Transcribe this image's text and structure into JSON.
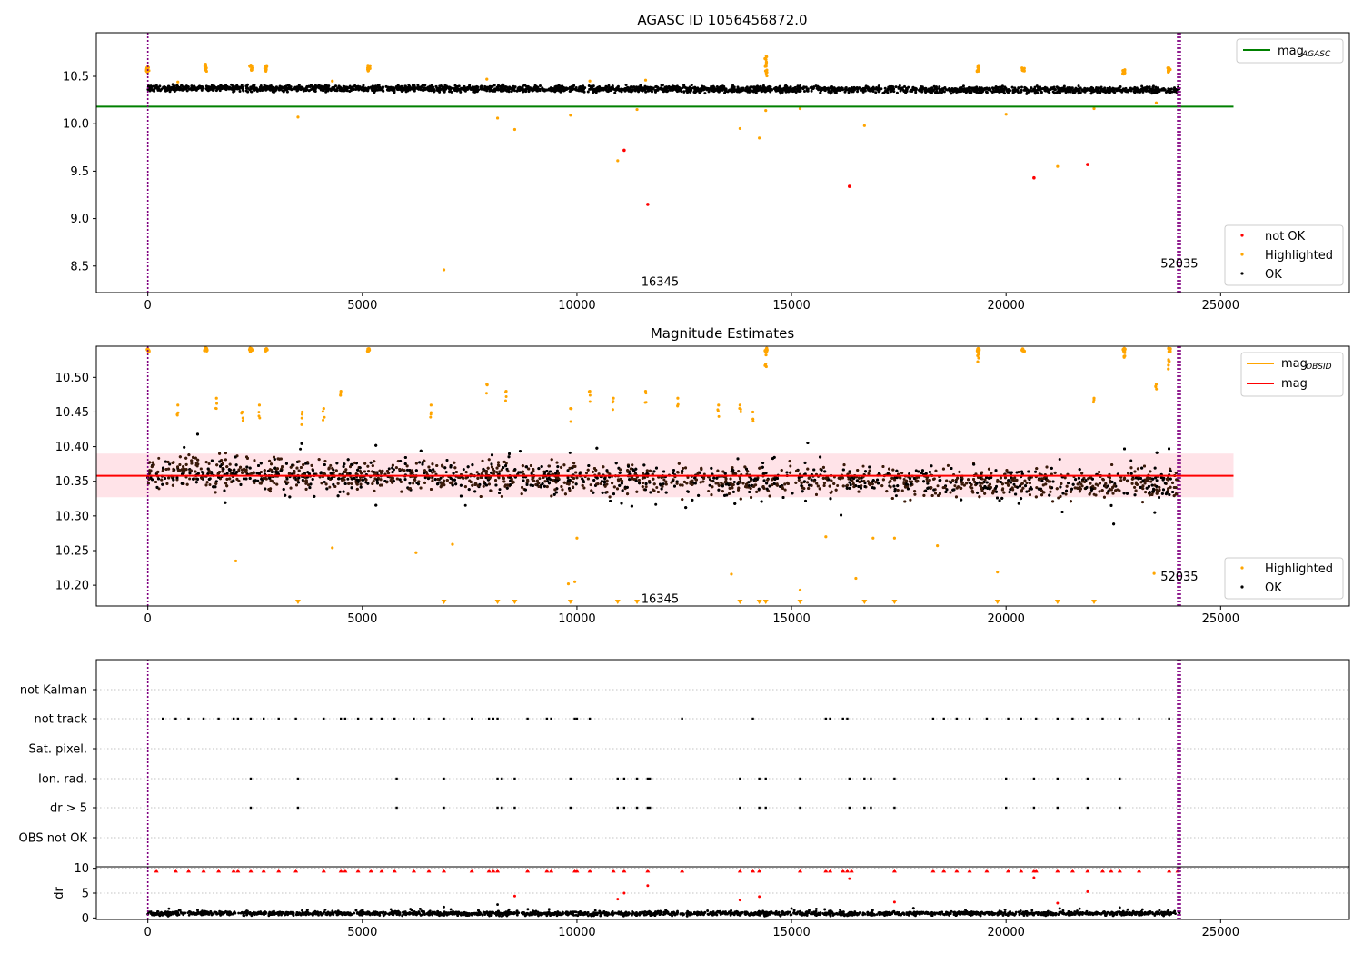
{
  "figure": {
    "colors": {
      "ok": "#000000",
      "highlighted": "#ffa500",
      "not_ok": "#ff0000",
      "mag_agasc_line": "#008000",
      "mag_line": "#ff0000",
      "mag_band": "#ffc0cb",
      "obsid_vline": "#800080"
    }
  },
  "chart_data": [
    {
      "type": "scatter",
      "title": "AGASC ID 1056456872.0",
      "xlim": [
        -1200,
        28000
      ],
      "ylim": [
        8.22,
        10.96
      ],
      "x_ticks": [
        0,
        5000,
        10000,
        15000,
        20000,
        25000
      ],
      "y_ticks": [
        8.5,
        9.0,
        9.5,
        10.0,
        10.5
      ],
      "x_tick_labels": [
        "0",
        "5000",
        "10000",
        "15000",
        "20000",
        "25000"
      ],
      "y_tick_labels": [
        "8.5",
        "9.0",
        "9.5",
        "10.0",
        "10.5"
      ],
      "legend_top": {
        "placement": "upper-right",
        "entries": [
          "mag_AGASC"
        ],
        "label_main": "mag",
        "label_sub": "AGASC"
      },
      "legend_bottom": {
        "placement": "lower-right",
        "entries": [
          "not OK",
          "Highlighted",
          "OK"
        ]
      },
      "hlines": [
        {
          "name": "mag_AGASC",
          "y": 10.18,
          "x_range": [
            -1200,
            25300
          ]
        }
      ],
      "obsid_lines": [
        0,
        24000,
        24060
      ],
      "obsid_annotations": [
        {
          "text": "16345",
          "x": 11500,
          "y": 8.33
        },
        {
          "text": "52035",
          "x": 23600,
          "y": 8.52
        }
      ],
      "ok_band": {
        "x_range": [
          0,
          24050
        ],
        "center": 10.355,
        "half_width": 0.05
      },
      "highlighted_clusters": [
        {
          "x": 0,
          "y_range": [
            10.54,
            10.6
          ]
        },
        {
          "x": 1350,
          "y_range": [
            10.55,
            10.64
          ]
        },
        {
          "x": 2400,
          "y_range": [
            10.55,
            10.62
          ]
        },
        {
          "x": 2750,
          "y_range": [
            10.55,
            10.62
          ]
        },
        {
          "x": 5150,
          "y_range": [
            10.55,
            10.62
          ]
        },
        {
          "x": 14400,
          "y_range": [
            10.5,
            10.73
          ]
        },
        {
          "x": 19350,
          "y_range": [
            10.55,
            10.62
          ]
        },
        {
          "x": 20400,
          "y_range": [
            10.55,
            10.6
          ]
        },
        {
          "x": 22750,
          "y_range": [
            10.52,
            10.58
          ]
        },
        {
          "x": 23800,
          "y_range": [
            10.54,
            10.59
          ]
        }
      ],
      "highlighted_points": [
        {
          "x": 3500,
          "y": 10.07
        },
        {
          "x": 6900,
          "y": 8.46
        },
        {
          "x": 8150,
          "y": 10.06
        },
        {
          "x": 8550,
          "y": 9.94
        },
        {
          "x": 9850,
          "y": 10.09
        },
        {
          "x": 10950,
          "y": 9.61
        },
        {
          "x": 11400,
          "y": 10.15
        },
        {
          "x": 13800,
          "y": 9.95
        },
        {
          "x": 14250,
          "y": 9.85
        },
        {
          "x": 14400,
          "y": 10.14
        },
        {
          "x": 15200,
          "y": 10.16
        },
        {
          "x": 16700,
          "y": 9.98
        },
        {
          "x": 20000,
          "y": 10.1
        },
        {
          "x": 21200,
          "y": 9.55
        },
        {
          "x": 22050,
          "y": 10.16
        },
        {
          "x": 23500,
          "y": 10.22
        },
        {
          "x": 700,
          "y": 10.44
        },
        {
          "x": 4300,
          "y": 10.45
        },
        {
          "x": 7900,
          "y": 10.47
        },
        {
          "x": 10300,
          "y": 10.45
        },
        {
          "x": 11600,
          "y": 10.46
        }
      ],
      "not_ok_points": [
        {
          "x": 11100,
          "y": 9.72
        },
        {
          "x": 11650,
          "y": 9.15
        },
        {
          "x": 16350,
          "y": 9.34
        },
        {
          "x": 20650,
          "y": 9.43
        },
        {
          "x": 21900,
          "y": 9.57
        }
      ]
    },
    {
      "type": "scatter",
      "title": "Magnitude Estimates",
      "xlim": [
        -1200,
        28000
      ],
      "ylim": [
        10.17,
        10.545
      ],
      "x_ticks": [
        0,
        5000,
        10000,
        15000,
        20000,
        25000
      ],
      "y_ticks": [
        10.2,
        10.25,
        10.3,
        10.35,
        10.4,
        10.45,
        10.5
      ],
      "x_tick_labels": [
        "0",
        "5000",
        "10000",
        "15000",
        "20000",
        "25000"
      ],
      "y_tick_labels": [
        "10.20",
        "10.25",
        "10.30",
        "10.35",
        "10.40",
        "10.45",
        "10.50"
      ],
      "legend_top": {
        "placement": "upper-right",
        "entries": [
          "mag_OBSID",
          "mag"
        ],
        "label_main": "mag",
        "label_sub": "OBSID",
        "label_second": "mag"
      },
      "legend_bottom": {
        "placement": "lower-right",
        "entries": [
          "Highlighted",
          "OK"
        ]
      },
      "mag_line": {
        "y": 10.358,
        "x_range": [
          -1200,
          25300
        ]
      },
      "mag_band": {
        "y_range": [
          10.327,
          10.39
        ],
        "x_range": [
          -1200,
          25300
        ]
      },
      "obsid_lines": [
        0,
        24000,
        24060
      ],
      "obsid_annotations": [
        {
          "text": "16345",
          "x": 11500,
          "y": 10.18
        },
        {
          "text": "52035",
          "x": 23600,
          "y": 10.212
        }
      ],
      "ok_scatter": {
        "x_range": [
          0,
          24050
        ],
        "center_start": 10.362,
        "center_end": 10.345,
        "spread": 0.03
      },
      "highlighted_top_clusters": [
        0,
        1350,
        2400,
        2750,
        5150,
        14400,
        19350,
        20400,
        22750,
        23800
      ],
      "highlighted_upper_points": [
        {
          "x": 700,
          "y": 10.46
        },
        {
          "x": 1600,
          "y": 10.47
        },
        {
          "x": 2200,
          "y": 10.45
        },
        {
          "x": 2600,
          "y": 10.46
        },
        {
          "x": 3600,
          "y": 10.45
        },
        {
          "x": 4500,
          "y": 10.48
        },
        {
          "x": 6600,
          "y": 10.46
        },
        {
          "x": 7900,
          "y": 10.49
        },
        {
          "x": 8350,
          "y": 10.48
        },
        {
          "x": 10300,
          "y": 10.48
        },
        {
          "x": 11600,
          "y": 10.48
        },
        {
          "x": 12350,
          "y": 10.47
        },
        {
          "x": 13300,
          "y": 10.46
        },
        {
          "x": 13800,
          "y": 10.46
        },
        {
          "x": 23500,
          "y": 10.49
        },
        {
          "x": 22050,
          "y": 10.47
        },
        {
          "x": 9850,
          "y": 10.455
        },
        {
          "x": 10850,
          "y": 10.47
        },
        {
          "x": 4100,
          "y": 10.455
        },
        {
          "x": 14100,
          "y": 10.45
        }
      ],
      "highlighted_lower_points": [
        {
          "x": 2050,
          "y": 10.235
        },
        {
          "x": 4300,
          "y": 10.254
        },
        {
          "x": 6250,
          "y": 10.247
        },
        {
          "x": 7100,
          "y": 10.259
        },
        {
          "x": 9800,
          "y": 10.202
        },
        {
          "x": 9950,
          "y": 10.205
        },
        {
          "x": 10000,
          "y": 10.268
        },
        {
          "x": 13600,
          "y": 10.216
        },
        {
          "x": 15200,
          "y": 10.193
        },
        {
          "x": 15800,
          "y": 10.27
        },
        {
          "x": 16500,
          "y": 10.21
        },
        {
          "x": 16900,
          "y": 10.268
        },
        {
          "x": 17400,
          "y": 10.268
        },
        {
          "x": 18400,
          "y": 10.257
        },
        {
          "x": 19800,
          "y": 10.219
        },
        {
          "x": 23450,
          "y": 10.217
        }
      ],
      "highlighted_offscale_low": [
        3500,
        6900,
        8150,
        8550,
        9850,
        10950,
        11400,
        13800,
        14250,
        14400,
        15200,
        16700,
        17400,
        19800,
        21200,
        22050
      ]
    },
    {
      "type": "scatter",
      "title": "",
      "xlim": [
        -1200,
        28000
      ],
      "categories": [
        "not Kalman",
        "not track",
        "Sat. pixel.",
        "Ion. rad.",
        "dr > 5",
        "OBS not OK"
      ],
      "flag_x": {
        "not Kalman": [],
        "not track": [
          350,
          650,
          950,
          1300,
          1650,
          2000,
          2100,
          2400,
          2700,
          3050,
          3450,
          4100,
          4500,
          4600,
          4900,
          5200,
          5450,
          5750,
          6200,
          6550,
          6900,
          7550,
          7950,
          8050,
          8150,
          8850,
          9300,
          9400,
          9950,
          10000,
          10300,
          12450,
          14100,
          15800,
          15900,
          16200,
          16300,
          18300,
          18550,
          18850,
          19150,
          19550,
          20050,
          20350,
          20700,
          21200,
          21550,
          21900,
          22250,
          22650,
          23100,
          23800
        ],
        "Sat. pixel.": [],
        "Ion. rad.": [
          2400,
          3500,
          5800,
          6900,
          8150,
          8250,
          8550,
          9850,
          10950,
          11100,
          11400,
          11650,
          11700,
          13800,
          14250,
          14400,
          15200,
          16350,
          16700,
          16850,
          17400,
          20000,
          20650,
          21200,
          21900,
          22650
        ],
        "dr > 5": [
          2400,
          3500,
          5800,
          6900,
          8150,
          8250,
          8550,
          9850,
          10950,
          11100,
          11400,
          11650,
          11700,
          13800,
          14250,
          14400,
          15200,
          16350,
          16700,
          16850,
          17400,
          20000,
          20650,
          21200,
          21900,
          22650
        ],
        "OBS not OK": []
      },
      "obsid_lines": [
        0,
        24000,
        24060
      ]
    },
    {
      "type": "scatter",
      "title": "",
      "ylabel": "dr",
      "xlim": [
        -1200,
        28000
      ],
      "ylim": [
        -0.3,
        10.3
      ],
      "x_ticks": [
        0,
        5000,
        10000,
        15000,
        20000,
        25000
      ],
      "y_ticks": [
        0,
        5,
        10
      ],
      "x_tick_labels": [
        "0",
        "5000",
        "10000",
        "15000",
        "20000",
        "25000"
      ],
      "y_tick_labels": [
        "0",
        "5",
        "10"
      ],
      "ok_band": {
        "x_range": [
          0,
          24050
        ],
        "center": 0.9,
        "spread": 0.6
      },
      "capped_x": [
        200,
        650,
        950,
        1300,
        1650,
        2000,
        2100,
        2400,
        2700,
        3050,
        3450,
        4100,
        4500,
        4600,
        4900,
        5200,
        5450,
        5750,
        6200,
        6550,
        6900,
        7550,
        7950,
        8050,
        8150,
        8850,
        9300,
        9400,
        9950,
        10000,
        10300,
        10850,
        11100,
        11650,
        12450,
        13800,
        14100,
        14250,
        15200,
        15800,
        15900,
        16200,
        16300,
        16400,
        17400,
        18300,
        18550,
        18850,
        19150,
        19550,
        20050,
        20350,
        20650,
        20700,
        21200,
        21550,
        21900,
        22250,
        22450,
        22650,
        23100,
        23800,
        24000
      ],
      "red_points": [
        {
          "x": 11100,
          "y": 5.0
        },
        {
          "x": 11650,
          "y": 6.5
        },
        {
          "x": 16350,
          "y": 7.9
        },
        {
          "x": 20650,
          "y": 8.1
        },
        {
          "x": 21900,
          "y": 5.3
        },
        {
          "x": 14250,
          "y": 4.3
        },
        {
          "x": 13800,
          "y": 3.6
        },
        {
          "x": 17400,
          "y": 3.2
        },
        {
          "x": 21200,
          "y": 3.0
        },
        {
          "x": 8550,
          "y": 4.4
        },
        {
          "x": 10950,
          "y": 3.8
        }
      ],
      "black_points": [
        {
          "x": 8150,
          "y": 2.7
        },
        {
          "x": 22650,
          "y": 2.1
        },
        {
          "x": 6900,
          "y": 2.2
        },
        {
          "x": 15000,
          "y": 1.9
        }
      ],
      "obsid_lines": [
        0,
        24000,
        24060
      ]
    }
  ]
}
